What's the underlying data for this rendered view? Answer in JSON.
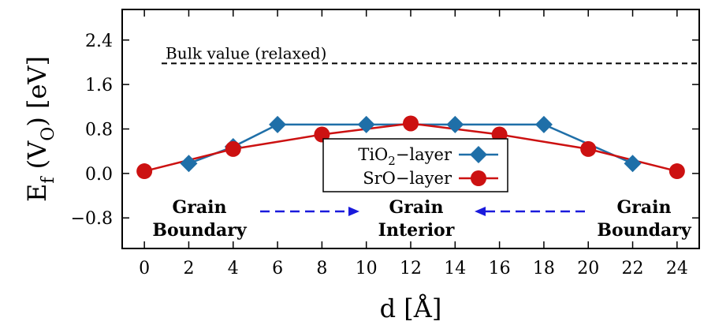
{
  "chart_data": {
    "type": "line",
    "xlabel": "d [Å]",
    "ylabel": {
      "main": "E",
      "sub1": "f",
      "paren_open": " (V",
      "sub2": "O",
      "paren_close": ") [eV]"
    },
    "xlim": [
      -1,
      25
    ],
    "ylim": [
      -1.35,
      2.95
    ],
    "xticks": [
      0,
      2,
      4,
      6,
      8,
      10,
      12,
      14,
      16,
      18,
      20,
      22,
      24
    ],
    "yticks": [
      -0.8,
      0.0,
      0.8,
      1.6,
      2.4
    ],
    "ytick_labels": [
      "−0.8",
      "0.0",
      "0.8",
      "1.6",
      "2.4"
    ],
    "grid": false,
    "legend_position": "center",
    "series": [
      {
        "name": "TiO2-layer",
        "label": {
          "pre": "TiO",
          "sub": "2",
          "post": "−layer"
        },
        "color": "#1f6fa8",
        "marker": "diamond",
        "x": [
          2,
          4,
          6,
          10,
          14,
          18,
          22
        ],
        "y": [
          0.18,
          0.48,
          0.88,
          0.88,
          0.88,
          0.88,
          0.18
        ]
      },
      {
        "name": "SrO-layer",
        "label": {
          "pre": "SrO−layer",
          "sub": "",
          "post": ""
        },
        "color": "#cc1111",
        "marker": "circle",
        "x": [
          0,
          4,
          8,
          12,
          16,
          20,
          24
        ],
        "y": [
          0.04,
          0.44,
          0.7,
          0.9,
          0.7,
          0.44,
          0.04
        ]
      }
    ],
    "reference_line": {
      "y": 1.98,
      "label": "Bulk value (relaxed)",
      "style": "dashed",
      "color": "#000000"
    },
    "annotations": {
      "left": {
        "line1": "Grain",
        "line2": "Boundary"
      },
      "center": {
        "line1": "Grain",
        "line2": "Interior"
      },
      "right": {
        "line1": "Grain",
        "line2": "Boundary"
      },
      "arrow_color": "#1a1adc"
    }
  }
}
